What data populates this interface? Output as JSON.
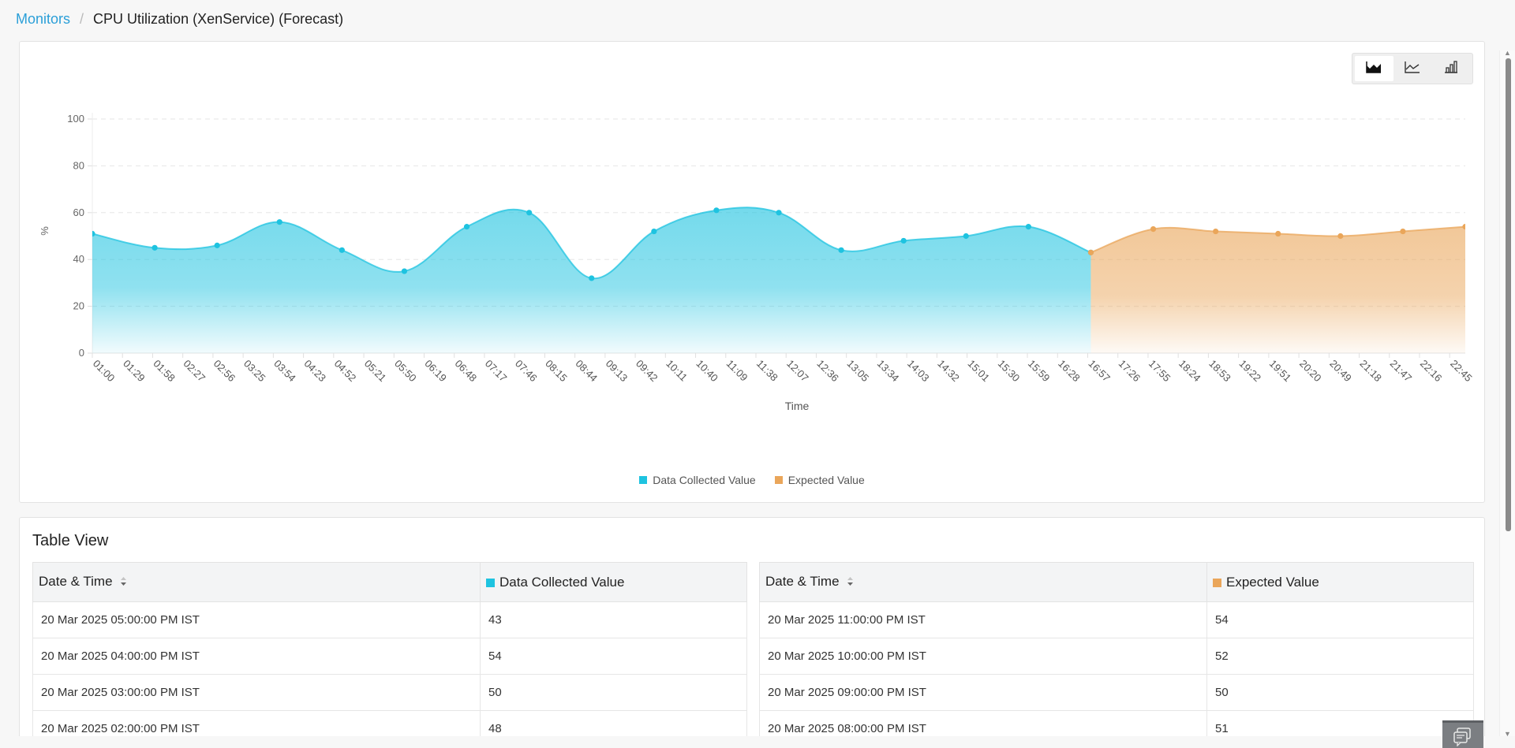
{
  "breadcrumb": {
    "root": "Monitors",
    "separator": "/",
    "current": "CPU Utilization (XenService) (Forecast)"
  },
  "chart_toggle": {
    "options": [
      {
        "name": "area-chart-icon",
        "label": "Area",
        "active": true
      },
      {
        "name": "line-chart-icon",
        "label": "Line",
        "active": false
      },
      {
        "name": "bar-chart-icon",
        "label": "Bar",
        "active": false
      }
    ]
  },
  "colors": {
    "collected": "#1ec3e0",
    "expected": "#eaa65a",
    "link": "#2b9fd8"
  },
  "chart_data": {
    "type": "area",
    "title": "CPU Utilization (XenService) (Forecast)",
    "xlabel": "Time",
    "ylabel": "%",
    "ylim": [
      0,
      100
    ],
    "yticks": [
      0,
      20,
      40,
      60,
      80,
      100
    ],
    "grid": "horizontal dashed",
    "legend_position": "bottom-center",
    "x_tick_labels": [
      "01:00",
      "01:29",
      "01:58",
      "02:27",
      "02:56",
      "03:25",
      "03:54",
      "04:23",
      "04:52",
      "05:21",
      "05:50",
      "06:19",
      "06:48",
      "07:17",
      "07:46",
      "08:15",
      "08:44",
      "09:13",
      "09:42",
      "10:11",
      "10:40",
      "11:09",
      "11:38",
      "12:07",
      "12:36",
      "13:05",
      "13:34",
      "14:03",
      "14:32",
      "15:01",
      "15:30",
      "15:59",
      "16:28",
      "16:57",
      "17:26",
      "17:55",
      "18:24",
      "18:53",
      "19:22",
      "19:51",
      "20:20",
      "20:49",
      "21:18",
      "21:47",
      "22:16",
      "22:45"
    ],
    "series": [
      {
        "name": "Data Collected Value",
        "color": "#1ec3e0",
        "x": [
          "01:00",
          "02:00",
          "03:00",
          "04:00",
          "05:00",
          "06:00",
          "07:00",
          "08:00",
          "09:00",
          "10:00",
          "11:00",
          "12:00",
          "13:00",
          "14:00",
          "15:00",
          "16:00",
          "17:00"
        ],
        "values": [
          51,
          45,
          46,
          56,
          44,
          35,
          54,
          60,
          32,
          52,
          61,
          60,
          44,
          48,
          50,
          54,
          43
        ]
      },
      {
        "name": "Expected Value",
        "color": "#eaa65a",
        "x": [
          "17:00",
          "18:00",
          "19:00",
          "20:00",
          "21:00",
          "22:00",
          "23:00"
        ],
        "values": [
          43,
          53,
          52,
          51,
          50,
          52,
          54
        ]
      }
    ]
  },
  "legend": {
    "collected": "Data Collected Value",
    "expected": "Expected Value"
  },
  "table_view": {
    "title": "Table View",
    "collected_table": {
      "headers": [
        "Date & Time",
        "Data Collected Value"
      ],
      "rows": [
        [
          "20 Mar 2025 05:00:00 PM IST",
          "43"
        ],
        [
          "20 Mar 2025 04:00:00 PM IST",
          "54"
        ],
        [
          "20 Mar 2025 03:00:00 PM IST",
          "50"
        ],
        [
          "20 Mar 2025 02:00:00 PM IST",
          "48"
        ]
      ]
    },
    "expected_table": {
      "headers": [
        "Date & Time",
        "Expected Value"
      ],
      "rows": [
        [
          "20 Mar 2025 11:00:00 PM IST",
          "54"
        ],
        [
          "20 Mar 2025 10:00:00 PM IST",
          "52"
        ],
        [
          "20 Mar 2025 09:00:00 PM IST",
          "50"
        ],
        [
          "20 Mar 2025 08:00:00 PM IST",
          "51"
        ]
      ]
    }
  }
}
